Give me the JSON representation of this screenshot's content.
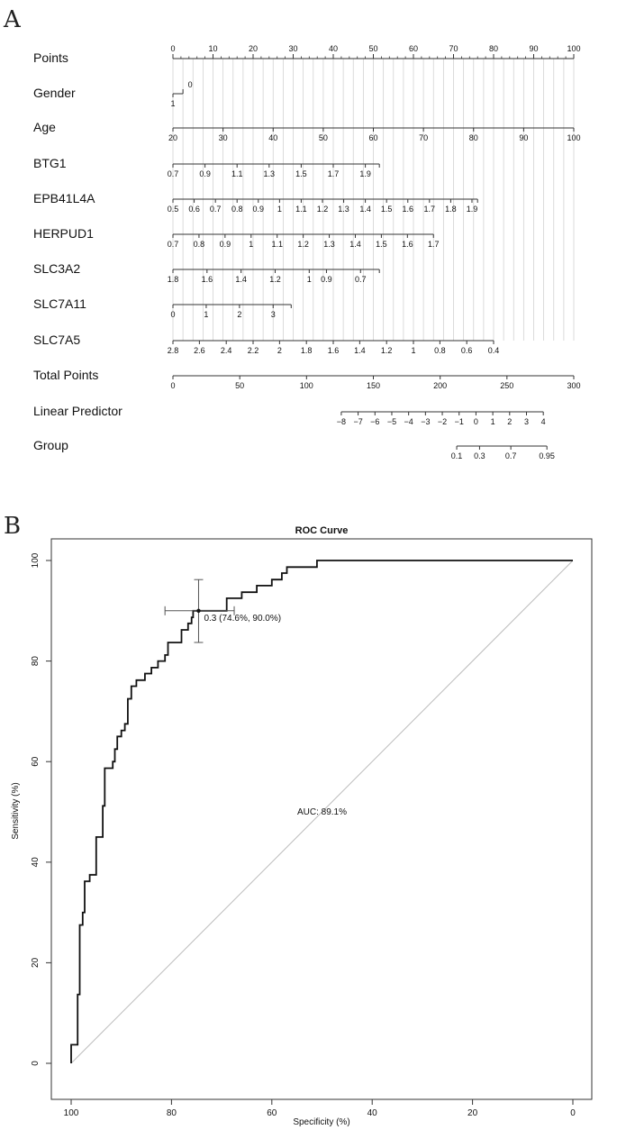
{
  "panels": {
    "a_label": "A",
    "b_label": "B"
  },
  "chart_data": [
    {
      "type": "nomogram",
      "panel": "A",
      "rows": [
        {
          "name": "Points",
          "ticks": [
            {
              "value": 0,
              "label": "0",
              "pts": 0
            },
            {
              "value": 10,
              "label": "10",
              "pts": 10
            },
            {
              "value": 20,
              "label": "20",
              "pts": 20
            },
            {
              "value": 30,
              "label": "30",
              "pts": 30
            },
            {
              "value": 40,
              "label": "40",
              "pts": 40
            },
            {
              "value": 50,
              "label": "50",
              "pts": 50
            },
            {
              "value": 60,
              "label": "60",
              "pts": 60
            },
            {
              "value": 70,
              "label": "70",
              "pts": 70
            },
            {
              "value": 80,
              "label": "80",
              "pts": 80
            },
            {
              "value": 90,
              "label": "90",
              "pts": 90
            },
            {
              "value": 100,
              "label": "100",
              "pts": 100
            }
          ]
        },
        {
          "name": "Gender",
          "ticks": [
            {
              "value": 1,
              "label": "1",
              "pts": 0,
              "below": true
            },
            {
              "value": 0,
              "label": "0",
              "pts": 2.5,
              "above": true
            }
          ]
        },
        {
          "name": "Age",
          "ticks": [
            {
              "value": 20,
              "label": "20",
              "pts": 0
            },
            {
              "value": 30,
              "label": "30",
              "pts": 12.5
            },
            {
              "value": 40,
              "label": "40",
              "pts": 25
            },
            {
              "value": 50,
              "label": "50",
              "pts": 37.5
            },
            {
              "value": 60,
              "label": "60",
              "pts": 50
            },
            {
              "value": 70,
              "label": "70",
              "pts": 62.5
            },
            {
              "value": 80,
              "label": "80",
              "pts": 75
            },
            {
              "value": 90,
              "label": "90",
              "pts": 87.5
            },
            {
              "value": 100,
              "label": "100",
              "pts": 100
            }
          ]
        },
        {
          "name": "BTG1",
          "ticks": [
            {
              "value": 0.7,
              "label": "0.7",
              "pts": 0
            },
            {
              "value": 0.9,
              "label": "0.9",
              "pts": 8
            },
            {
              "value": 1.1,
              "label": "1.1",
              "pts": 16
            },
            {
              "value": 1.3,
              "label": "1.3",
              "pts": 24
            },
            {
              "value": 1.5,
              "label": "1.5",
              "pts": 32
            },
            {
              "value": 1.7,
              "label": "1.7",
              "pts": 40
            },
            {
              "value": 1.9,
              "label": "1.9",
              "pts": 48
            },
            {
              "value": 2.0,
              "label": "",
              "pts": 51.5
            }
          ]
        },
        {
          "name": "EPB41L4A",
          "ticks": [
            {
              "value": 0.5,
              "label": "0.5",
              "pts": 0
            },
            {
              "value": 0.6,
              "label": "0.6",
              "pts": 5.3
            },
            {
              "value": 0.7,
              "label": "0.7",
              "pts": 10.6
            },
            {
              "value": 0.8,
              "label": "0.8",
              "pts": 16
            },
            {
              "value": 0.9,
              "label": "0.9",
              "pts": 21.3
            },
            {
              "value": 1.0,
              "label": "1",
              "pts": 26.6
            },
            {
              "value": 1.1,
              "label": "1.1",
              "pts": 32
            },
            {
              "value": 1.2,
              "label": "1.2",
              "pts": 37.3
            },
            {
              "value": 1.3,
              "label": "1.3",
              "pts": 42.6
            },
            {
              "value": 1.4,
              "label": "1.4",
              "pts": 48
            },
            {
              "value": 1.5,
              "label": "1.5",
              "pts": 53.3
            },
            {
              "value": 1.6,
              "label": "1.6",
              "pts": 58.6
            },
            {
              "value": 1.7,
              "label": "1.7",
              "pts": 64
            },
            {
              "value": 1.8,
              "label": "1.8",
              "pts": 69.3
            },
            {
              "value": 1.9,
              "label": "1.9",
              "pts": 74.6
            },
            {
              "value": 1.95,
              "label": "",
              "pts": 76
            }
          ]
        },
        {
          "name": "HERPUD1",
          "ticks": [
            {
              "value": 0.7,
              "label": "0.7",
              "pts": 0
            },
            {
              "value": 0.8,
              "label": "0.8",
              "pts": 6.5
            },
            {
              "value": 0.9,
              "label": "0.9",
              "pts": 13
            },
            {
              "value": 1.0,
              "label": "1",
              "pts": 19.5
            },
            {
              "value": 1.1,
              "label": "1.1",
              "pts": 26
            },
            {
              "value": 1.2,
              "label": "1.2",
              "pts": 32.5
            },
            {
              "value": 1.3,
              "label": "1.3",
              "pts": 39
            },
            {
              "value": 1.4,
              "label": "1.4",
              "pts": 45.5
            },
            {
              "value": 1.5,
              "label": "1.5",
              "pts": 52
            },
            {
              "value": 1.6,
              "label": "1.6",
              "pts": 58.5
            },
            {
              "value": 1.7,
              "label": "1.7",
              "pts": 65
            }
          ]
        },
        {
          "name": "SLC3A2",
          "ticks": [
            {
              "value": 1.8,
              "label": "1.8",
              "pts": 0
            },
            {
              "value": 1.6,
              "label": "1.6",
              "pts": 8.5
            },
            {
              "value": 1.4,
              "label": "1.4",
              "pts": 17
            },
            {
              "value": 1.2,
              "label": "1.2",
              "pts": 25.5
            },
            {
              "value": 1.0,
              "label": "1",
              "pts": 34
            },
            {
              "value": 0.9,
              "label": "0.9",
              "pts": 38.3
            },
            {
              "value": 0.7,
              "label": "0.7",
              "pts": 46.8
            },
            {
              "value": 0.6,
              "label": "",
              "pts": 51.5
            }
          ]
        },
        {
          "name": "SLC7A11",
          "ticks": [
            {
              "value": 0,
              "label": "0",
              "pts": 0
            },
            {
              "value": 1,
              "label": "1",
              "pts": 8.3
            },
            {
              "value": 2,
              "label": "2",
              "pts": 16.6
            },
            {
              "value": 3,
              "label": "3",
              "pts": 25
            },
            {
              "value": 3.5,
              "label": "",
              "pts": 29.5
            }
          ]
        },
        {
          "name": "SLC7A5",
          "ticks": [
            {
              "value": 2.8,
              "label": "2.8",
              "pts": 0
            },
            {
              "value": 2.6,
              "label": "2.6",
              "pts": 6.6
            },
            {
              "value": 2.4,
              "label": "2.4",
              "pts": 13.3
            },
            {
              "value": 2.2,
              "label": "2.2",
              "pts": 20
            },
            {
              "value": 2.0,
              "label": "2",
              "pts": 26.6
            },
            {
              "value": 1.8,
              "label": "1.8",
              "pts": 33.3
            },
            {
              "value": 1.6,
              "label": "1.6",
              "pts": 40
            },
            {
              "value": 1.4,
              "label": "1.4",
              "pts": 46.6
            },
            {
              "value": 1.2,
              "label": "1.2",
              "pts": 53.3
            },
            {
              "value": 1.0,
              "label": "1",
              "pts": 60
            },
            {
              "value": 0.8,
              "label": "0.8",
              "pts": 66.6
            },
            {
              "value": 0.6,
              "label": "0.6",
              "pts": 73.3
            },
            {
              "value": 0.4,
              "label": "0.4",
              "pts": 80
            }
          ]
        },
        {
          "name": "Total Points",
          "ticks": [
            {
              "value": 0,
              "label": "0",
              "pts": 0
            },
            {
              "value": 50,
              "label": "50",
              "pts": 16.67
            },
            {
              "value": 100,
              "label": "100",
              "pts": 33.33
            },
            {
              "value": 150,
              "label": "150",
              "pts": 50
            },
            {
              "value": 200,
              "label": "200",
              "pts": 66.67
            },
            {
              "value": 250,
              "label": "250",
              "pts": 83.33
            },
            {
              "value": 300,
              "label": "300",
              "pts": 100
            }
          ]
        },
        {
          "name": "Linear Predictor",
          "ticks": [
            {
              "value": -8,
              "label": "−8",
              "pts": 42
            },
            {
              "value": -7,
              "label": "−7",
              "pts": 46.2
            },
            {
              "value": -6,
              "label": "−6",
              "pts": 50.4
            },
            {
              "value": -5,
              "label": "−5",
              "pts": 54.6
            },
            {
              "value": -4,
              "label": "−4",
              "pts": 58.8
            },
            {
              "value": -3,
              "label": "−3",
              "pts": 63
            },
            {
              "value": -2,
              "label": "−2",
              "pts": 67.2
            },
            {
              "value": -1,
              "label": "−1",
              "pts": 71.4
            },
            {
              "value": 0,
              "label": "0",
              "pts": 75.6
            },
            {
              "value": 1,
              "label": "1",
              "pts": 79.8
            },
            {
              "value": 2,
              "label": "2",
              "pts": 84
            },
            {
              "value": 3,
              "label": "3",
              "pts": 88.2
            },
            {
              "value": 4,
              "label": "4",
              "pts": 92.4
            }
          ]
        },
        {
          "name": "Group",
          "ticks": [
            {
              "value": 0.1,
              "label": "0.1",
              "pts": 70.8
            },
            {
              "value": 0.3,
              "label": "0.3",
              "pts": 76.5
            },
            {
              "value": 0.7,
              "label": "0.7",
              "pts": 84.3
            },
            {
              "value": 0.95,
              "label": "0.95",
              "pts": 93.3
            }
          ]
        }
      ]
    },
    {
      "type": "line",
      "panel": "B",
      "title": "ROC Curve",
      "xlabel": "Specificity (%)",
      "ylabel": "Sensitivity (%)",
      "xlim": [
        100,
        0
      ],
      "ylim": [
        0,
        100
      ],
      "xticks": [
        100,
        80,
        60,
        40,
        20,
        0
      ],
      "yticks": [
        0,
        20,
        40,
        60,
        80,
        100
      ],
      "series": [
        {
          "name": "ROC",
          "points": [
            [
              100,
              0
            ],
            [
              100,
              3.7
            ],
            [
              98.7,
              3.7
            ],
            [
              98.7,
              13.7
            ],
            [
              98.3,
              13.7
            ],
            [
              98.3,
              27.5
            ],
            [
              97.7,
              27.5
            ],
            [
              97.7,
              30
            ],
            [
              97.3,
              30
            ],
            [
              97.3,
              36.2
            ],
            [
              96.3,
              36.2
            ],
            [
              96.3,
              37.5
            ],
            [
              95,
              37.5
            ],
            [
              95,
              45
            ],
            [
              93.7,
              45
            ],
            [
              93.7,
              51.2
            ],
            [
              93.3,
              51.2
            ],
            [
              93.3,
              58.7
            ],
            [
              91.7,
              58.7
            ],
            [
              91.7,
              60
            ],
            [
              91.3,
              60
            ],
            [
              91.3,
              62.5
            ],
            [
              90.8,
              62.5
            ],
            [
              90.8,
              65
            ],
            [
              90,
              65
            ],
            [
              90,
              66.2
            ],
            [
              89.3,
              66.2
            ],
            [
              89.3,
              67.5
            ],
            [
              88.7,
              67.5
            ],
            [
              88.7,
              72.5
            ],
            [
              88,
              72.5
            ],
            [
              88,
              75
            ],
            [
              87,
              75
            ],
            [
              87,
              76.2
            ],
            [
              85.3,
              76.2
            ],
            [
              85.3,
              77.5
            ],
            [
              84,
              77.5
            ],
            [
              84,
              78.7
            ],
            [
              82.7,
              78.7
            ],
            [
              82.7,
              80
            ],
            [
              81.3,
              80
            ],
            [
              81.3,
              81.2
            ],
            [
              80.7,
              81.2
            ],
            [
              80.7,
              83.7
            ],
            [
              78,
              83.7
            ],
            [
              78,
              86.2
            ],
            [
              76.7,
              86.2
            ],
            [
              76.7,
              87.5
            ],
            [
              76,
              87.5
            ],
            [
              76,
              88.7
            ],
            [
              75.7,
              88.7
            ],
            [
              75.7,
              90
            ],
            [
              74.6,
              90
            ],
            [
              74.6,
              90
            ],
            [
              69,
              90
            ],
            [
              69,
              92.5
            ],
            [
              66,
              92.5
            ],
            [
              66,
              93.7
            ],
            [
              63,
              93.7
            ],
            [
              63,
              95
            ],
            [
              60,
              95
            ],
            [
              60,
              96.2
            ],
            [
              58,
              96.2
            ],
            [
              58,
              97.5
            ],
            [
              57,
              97.5
            ],
            [
              57,
              98.7
            ],
            [
              51,
              98.7
            ],
            [
              51,
              100
            ],
            [
              0,
              100
            ]
          ]
        }
      ],
      "diagonal": [
        [
          100,
          0
        ],
        [
          0,
          100
        ]
      ],
      "best_threshold": {
        "x": 74.6,
        "y": 90.0,
        "label": "0.3 (74.6%, 90.0%)",
        "ci_x": [
          67.5,
          81.3
        ],
        "ci_y": [
          83.7,
          96.2
        ]
      },
      "auc_label": "AUC: 89.1%",
      "auc_position": [
        50,
        50
      ]
    }
  ],
  "colors": {
    "axis": "#333333",
    "curve": "#111111",
    "diagonal": "#bbbbbb",
    "grid": "#cccccc",
    "ci": "#555555"
  }
}
